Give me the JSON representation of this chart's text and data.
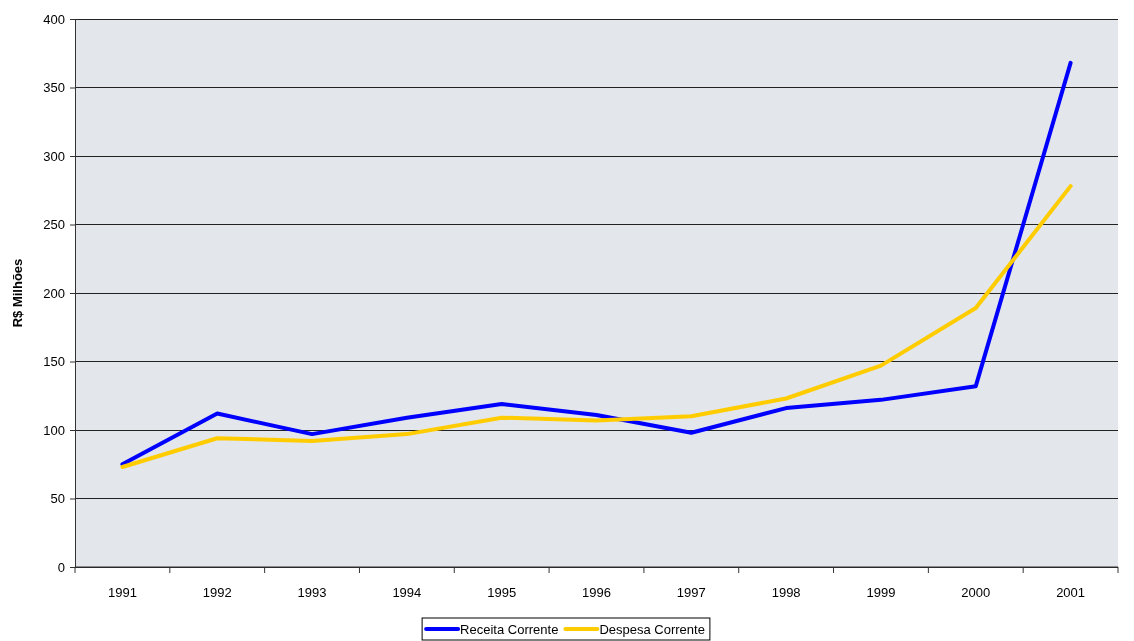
{
  "chart_data": {
    "type": "line",
    "ylabel": "R$ Milhões",
    "categories": [
      "1991",
      "1992",
      "1993",
      "1994",
      "1995",
      "1996",
      "1997",
      "1998",
      "1999",
      "2000",
      "2001"
    ],
    "series": [
      {
        "name": "Receita Corrente",
        "color": "#0000ff",
        "values": [
          75,
          112,
          97,
          109,
          119,
          111,
          98,
          116,
          122,
          132,
          368
        ]
      },
      {
        "name": "Despesa Corrente",
        "color": "#ffcc00",
        "values": [
          73,
          94,
          92,
          97,
          109,
          107,
          110,
          123,
          147,
          189,
          278
        ]
      }
    ],
    "ylim": [
      0,
      400
    ],
    "yticks": [
      0,
      50,
      100,
      150,
      200,
      250,
      300,
      350,
      400
    ],
    "grid": "y",
    "legend": "bottom"
  }
}
